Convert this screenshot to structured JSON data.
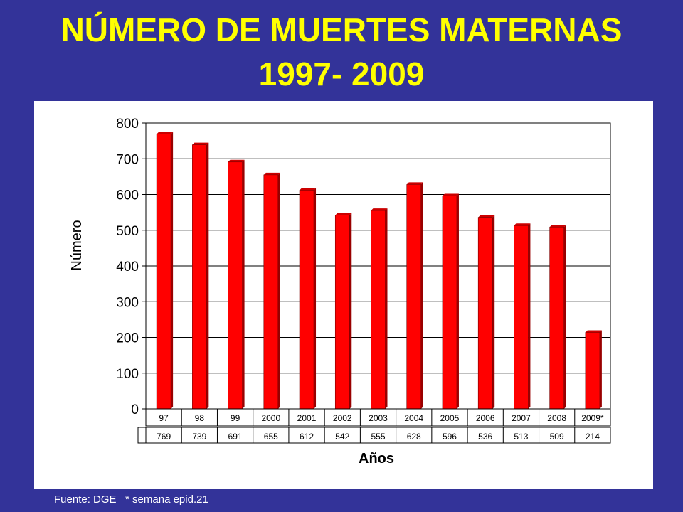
{
  "slide": {
    "title_line1": "NÚMERO DE MUERTES MATERNAS",
    "title_line2": "1997-  2009",
    "footer": "Fuente: DGE   * semana epid.21"
  },
  "colors": {
    "background": "#333399",
    "title": "#FFFF00",
    "bar": "#FF0000",
    "bar_shade": "#990000"
  },
  "chart_data": {
    "type": "bar",
    "title": "",
    "xlabel": "Años",
    "ylabel": "Número",
    "categories": [
      "97",
      "98",
      "99",
      "2000",
      "2001",
      "2002",
      "2003",
      "2004",
      "2005",
      "2006",
      "2007",
      "2008",
      "2009*"
    ],
    "values": [
      769,
      739,
      691,
      655,
      612,
      542,
      555,
      628,
      596,
      536,
      513,
      509,
      214
    ],
    "table_values": [
      "769",
      "739",
      "691",
      "655",
      "612",
      "542",
      "555",
      "628",
      "596",
      "536",
      "513",
      "509",
      "214"
    ],
    "ylim": [
      0,
      800
    ],
    "yticks": [
      0,
      100,
      200,
      300,
      400,
      500,
      600,
      700,
      800
    ],
    "grid": true,
    "legend": false,
    "data_table": true
  }
}
